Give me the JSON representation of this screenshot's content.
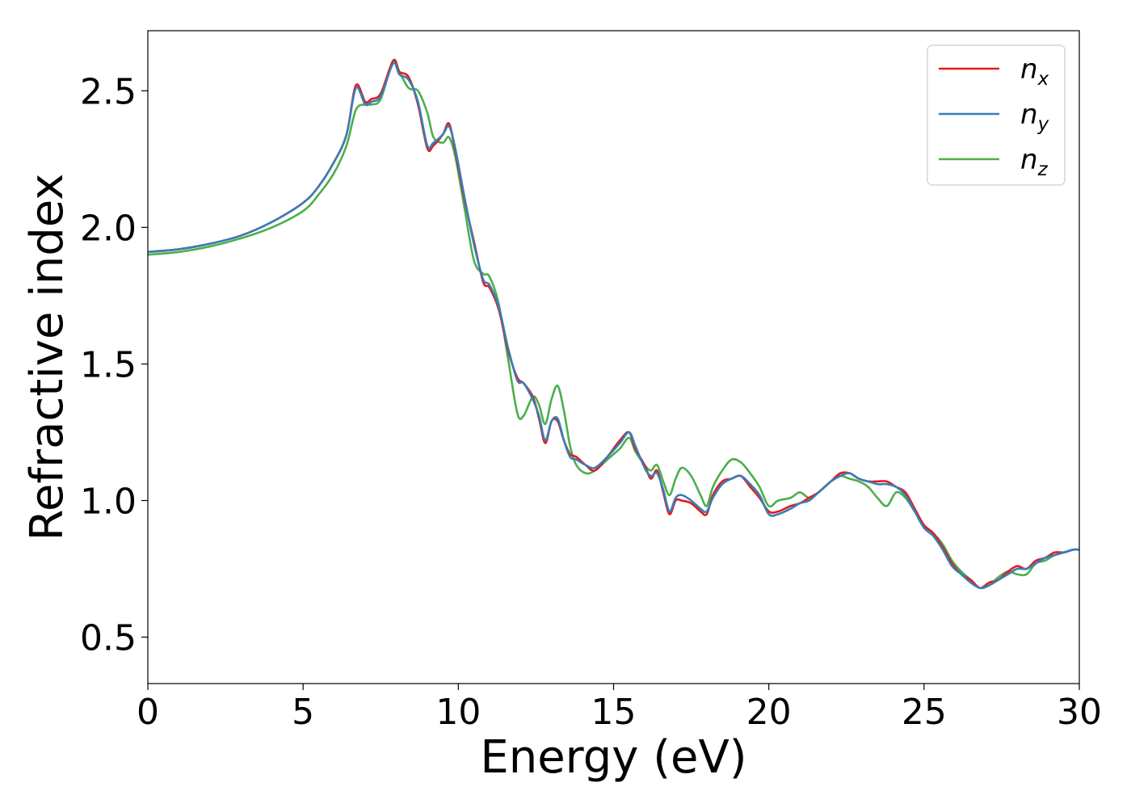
{
  "chart_data": {
    "type": "line",
    "xlabel": "Energy (eV)",
    "ylabel": "Refractive index",
    "xlim": [
      0,
      30
    ],
    "ylim": [
      0.33,
      2.72
    ],
    "xticks": [
      0,
      5,
      10,
      15,
      20,
      25,
      30
    ],
    "yticks": [
      0.5,
      1.0,
      1.5,
      2.0,
      2.5
    ],
    "xtick_labels": [
      "0",
      "5",
      "10",
      "15",
      "20",
      "25",
      "30"
    ],
    "ytick_labels": [
      "0.5",
      "1.0",
      "1.5",
      "2.0",
      "2.5"
    ],
    "grid": false,
    "legend_position": "top-right",
    "series": [
      {
        "name": "n",
        "subscript": "x",
        "color": "#e41a1c",
        "x": [
          0,
          1,
          2,
          3,
          4,
          5,
          5.5,
          6,
          6.4,
          6.7,
          7.0,
          7.2,
          7.5,
          7.9,
          8.1,
          8.4,
          8.7,
          9.0,
          9.2,
          9.5,
          9.7,
          9.9,
          10.2,
          10.5,
          10.8,
          11.0,
          11.3,
          11.6,
          11.9,
          12.1,
          12.4,
          12.6,
          12.8,
          13.0,
          13.2,
          13.4,
          13.6,
          13.8,
          14.1,
          14.4,
          14.8,
          15.2,
          15.5,
          15.7,
          16.0,
          16.2,
          16.4,
          16.6,
          16.8,
          17.0,
          17.2,
          17.5,
          17.8,
          18.0,
          18.2,
          18.5,
          18.8,
          19.1,
          19.4,
          19.7,
          20.0,
          20.3,
          20.7,
          21.0,
          21.3,
          21.6,
          22.0,
          22.3,
          22.6,
          22.9,
          23.2,
          23.5,
          23.8,
          24.1,
          24.4,
          24.7,
          25.0,
          25.3,
          25.6,
          25.9,
          26.2,
          26.5,
          26.8,
          27.1,
          27.4,
          27.7,
          28.0,
          28.3,
          28.6,
          28.9,
          29.2,
          29.5,
          29.8,
          30
        ],
        "y": [
          1.91,
          1.92,
          1.94,
          1.97,
          2.02,
          2.09,
          2.15,
          2.24,
          2.34,
          2.52,
          2.46,
          2.47,
          2.49,
          2.61,
          2.57,
          2.55,
          2.45,
          2.29,
          2.3,
          2.34,
          2.38,
          2.28,
          2.1,
          1.95,
          1.8,
          1.78,
          1.7,
          1.55,
          1.45,
          1.43,
          1.38,
          1.3,
          1.21,
          1.29,
          1.29,
          1.22,
          1.17,
          1.16,
          1.13,
          1.11,
          1.16,
          1.22,
          1.25,
          1.19,
          1.13,
          1.08,
          1.11,
          1.03,
          0.95,
          1.0,
          1.0,
          0.99,
          0.96,
          0.95,
          1.02,
          1.07,
          1.08,
          1.09,
          1.05,
          1.01,
          0.96,
          0.96,
          0.98,
          0.99,
          1.01,
          1.03,
          1.07,
          1.1,
          1.1,
          1.08,
          1.07,
          1.07,
          1.07,
          1.05,
          1.03,
          0.97,
          0.91,
          0.88,
          0.83,
          0.77,
          0.73,
          0.71,
          0.68,
          0.7,
          0.71,
          0.74,
          0.76,
          0.75,
          0.78,
          0.79,
          0.81,
          0.81,
          0.82,
          0.82
        ]
      },
      {
        "name": "n",
        "subscript": "y",
        "color": "#377eb8",
        "x": [
          0,
          1,
          2,
          3,
          4,
          5,
          5.5,
          6,
          6.4,
          6.7,
          7.0,
          7.2,
          7.5,
          7.9,
          8.1,
          8.4,
          8.7,
          9.0,
          9.2,
          9.5,
          9.7,
          9.9,
          10.2,
          10.5,
          10.8,
          11.0,
          11.3,
          11.6,
          11.9,
          12.1,
          12.4,
          12.6,
          12.8,
          13.0,
          13.2,
          13.4,
          13.6,
          13.8,
          14.1,
          14.4,
          14.8,
          15.2,
          15.5,
          15.7,
          16.0,
          16.2,
          16.4,
          16.6,
          16.8,
          17.0,
          17.2,
          17.5,
          17.8,
          18.0,
          18.2,
          18.5,
          18.8,
          19.1,
          19.4,
          19.7,
          20.0,
          20.3,
          20.7,
          21.0,
          21.3,
          21.6,
          22.0,
          22.3,
          22.6,
          22.9,
          23.2,
          23.5,
          23.8,
          24.1,
          24.4,
          24.7,
          25.0,
          25.3,
          25.6,
          25.9,
          26.2,
          26.5,
          26.8,
          27.1,
          27.4,
          27.7,
          28.0,
          28.3,
          28.6,
          28.9,
          29.2,
          29.5,
          29.8,
          30
        ],
        "y": [
          1.91,
          1.92,
          1.94,
          1.97,
          2.02,
          2.09,
          2.15,
          2.24,
          2.34,
          2.51,
          2.45,
          2.46,
          2.48,
          2.6,
          2.56,
          2.54,
          2.46,
          2.3,
          2.31,
          2.34,
          2.37,
          2.29,
          2.11,
          1.94,
          1.81,
          1.79,
          1.71,
          1.56,
          1.44,
          1.43,
          1.37,
          1.31,
          1.22,
          1.29,
          1.3,
          1.22,
          1.16,
          1.15,
          1.13,
          1.12,
          1.16,
          1.21,
          1.25,
          1.2,
          1.12,
          1.09,
          1.1,
          1.04,
          0.96,
          1.01,
          1.02,
          1.0,
          0.97,
          0.96,
          1.01,
          1.06,
          1.08,
          1.09,
          1.06,
          1.02,
          0.95,
          0.95,
          0.97,
          0.99,
          1.0,
          1.03,
          1.07,
          1.09,
          1.1,
          1.08,
          1.07,
          1.06,
          1.06,
          1.05,
          1.02,
          0.96,
          0.9,
          0.87,
          0.82,
          0.76,
          0.73,
          0.7,
          0.68,
          0.69,
          0.71,
          0.73,
          0.75,
          0.75,
          0.77,
          0.79,
          0.8,
          0.81,
          0.82,
          0.82
        ]
      },
      {
        "name": "n",
        "subscript": "z",
        "color": "#4daf4a",
        "x": [
          0,
          1,
          2,
          3,
          4,
          5,
          5.5,
          6,
          6.4,
          6.7,
          7.0,
          7.2,
          7.5,
          7.9,
          8.1,
          8.4,
          8.7,
          9.0,
          9.2,
          9.5,
          9.7,
          9.9,
          10.2,
          10.5,
          10.8,
          11.0,
          11.3,
          11.6,
          11.9,
          12.1,
          12.4,
          12.6,
          12.8,
          13.0,
          13.2,
          13.4,
          13.6,
          13.8,
          14.1,
          14.4,
          14.8,
          15.2,
          15.5,
          15.7,
          16.0,
          16.2,
          16.4,
          16.6,
          16.8,
          17.0,
          17.2,
          17.5,
          17.8,
          18.0,
          18.2,
          18.5,
          18.8,
          19.1,
          19.4,
          19.7,
          20.0,
          20.3,
          20.7,
          21.0,
          21.3,
          21.6,
          22.0,
          22.3,
          22.6,
          22.9,
          23.2,
          23.5,
          23.8,
          24.1,
          24.4,
          24.7,
          25.0,
          25.3,
          25.6,
          25.9,
          26.2,
          26.5,
          26.8,
          27.1,
          27.4,
          27.7,
          28.0,
          28.3,
          28.6,
          28.9,
          29.2,
          29.5,
          29.8,
          30
        ],
        "y": [
          1.9,
          1.91,
          1.93,
          1.96,
          2.0,
          2.06,
          2.12,
          2.2,
          2.3,
          2.43,
          2.45,
          2.45,
          2.47,
          2.61,
          2.57,
          2.51,
          2.5,
          2.42,
          2.33,
          2.31,
          2.33,
          2.26,
          2.07,
          1.88,
          1.83,
          1.82,
          1.72,
          1.52,
          1.32,
          1.31,
          1.38,
          1.35,
          1.28,
          1.37,
          1.42,
          1.33,
          1.2,
          1.13,
          1.1,
          1.11,
          1.15,
          1.19,
          1.23,
          1.18,
          1.13,
          1.11,
          1.13,
          1.07,
          1.02,
          1.08,
          1.12,
          1.09,
          1.02,
          0.98,
          1.05,
          1.11,
          1.15,
          1.14,
          1.1,
          1.05,
          0.98,
          1.0,
          1.01,
          1.03,
          1.01,
          1.03,
          1.07,
          1.09,
          1.08,
          1.07,
          1.05,
          1.01,
          0.98,
          1.03,
          1.01,
          0.96,
          0.91,
          0.88,
          0.84,
          0.78,
          0.74,
          0.71,
          0.68,
          0.69,
          0.72,
          0.74,
          0.73,
          0.73,
          0.77,
          0.78,
          0.8,
          0.81,
          0.82,
          0.82
        ]
      }
    ]
  }
}
